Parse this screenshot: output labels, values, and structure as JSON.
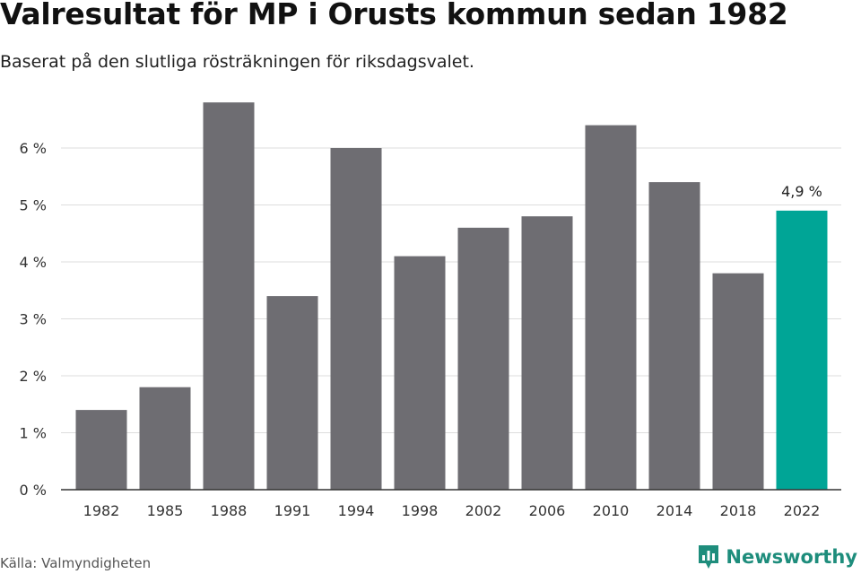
{
  "header": {
    "title": "Valresultat för MP i Orusts kommun sedan 1982",
    "subtitle": "Baserat på den slutliga rösträkningen för riksdagsvalet."
  },
  "footer": {
    "source": "Källa: Valmyndigheten",
    "brand": "Newsworthy"
  },
  "colors": {
    "bar": "#6e6d72",
    "highlight": "#00a596",
    "grid": "#dddddd",
    "axis": "#333333",
    "brand": "#1e8d7c"
  },
  "icons": {
    "brand_logo": "newsworthy-logo-icon"
  },
  "chart_data": {
    "type": "bar",
    "title": "Valresultat för MP i Orusts kommun sedan 1982",
    "subtitle": "Baserat på den slutliga rösträkningen för riksdagsvalet.",
    "categories": [
      "1982",
      "1985",
      "1988",
      "1991",
      "1994",
      "1998",
      "2002",
      "2006",
      "2010",
      "2014",
      "2018",
      "2022"
    ],
    "values": [
      1.4,
      1.8,
      6.8,
      3.4,
      6.0,
      4.1,
      4.6,
      4.8,
      6.4,
      5.4,
      3.8,
      4.9
    ],
    "highlight_index": 11,
    "highlight_label": "4,9 %",
    "y_ticks": [
      0,
      1,
      2,
      3,
      4,
      5,
      6
    ],
    "y_tick_labels": [
      "0 %",
      "1 %",
      "2 %",
      "3 %",
      "4 %",
      "5 %",
      "6 %"
    ],
    "ylim": [
      0,
      7.1
    ],
    "grid": true,
    "legend": "none"
  }
}
